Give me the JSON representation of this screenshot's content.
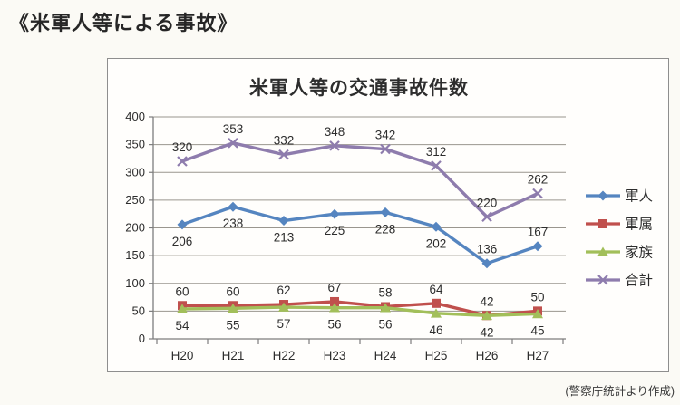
{
  "page": {
    "heading": "《米軍人等による事故》",
    "source_note": "(警察庁統計より作成)"
  },
  "chart_data": {
    "type": "line",
    "title": "米軍人等の交通事故件数",
    "categories": [
      "H20",
      "H21",
      "H22",
      "H23",
      "H24",
      "H25",
      "H26",
      "H27"
    ],
    "series": [
      {
        "name": "軍人",
        "color": "#5585c0",
        "marker": "diamond",
        "values": [
          206,
          238,
          213,
          225,
          228,
          202,
          136,
          167
        ],
        "label_positions": [
          "below",
          "below",
          "below",
          "below",
          "below",
          "below",
          "above",
          "above"
        ]
      },
      {
        "name": "軍属",
        "color": "#c0504d",
        "marker": "square",
        "values": [
          60,
          60,
          62,
          67,
          58,
          64,
          42,
          50
        ],
        "label_positions": "above"
      },
      {
        "name": "家族",
        "color": "#a2bf5a",
        "marker": "triangle",
        "values": [
          54,
          55,
          57,
          56,
          56,
          46,
          42,
          45
        ],
        "label_positions": "below"
      },
      {
        "name": "合計",
        "color": "#8e7cad",
        "marker": "x",
        "values": [
          320,
          353,
          332,
          348,
          342,
          312,
          220,
          262
        ],
        "label_positions": "above"
      }
    ],
    "ylim": [
      0,
      400
    ],
    "ytick_step": 50,
    "grid": true,
    "legend_position": "right",
    "colors": {
      "gridline": "#9a968e",
      "axis": "#7d7d7d",
      "label_text": "#2d2d2d"
    }
  }
}
